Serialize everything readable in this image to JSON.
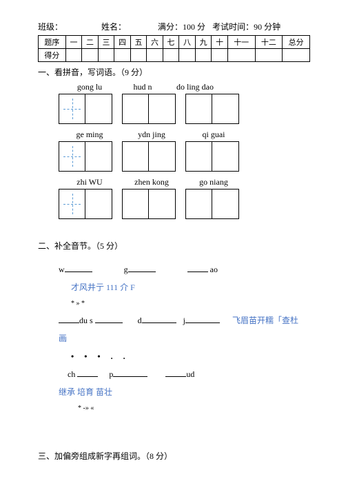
{
  "header": {
    "class_label": "班级：",
    "name_label": "姓名：",
    "full_score_label": "满分：",
    "full_score_value": "100 分",
    "time_label": "考试时间：",
    "time_value": "90 分钟"
  },
  "score_table": {
    "row1": [
      "题序",
      "一",
      "二",
      "三",
      "四",
      "五",
      "六",
      "七",
      "八",
      "九",
      "十",
      "十一",
      "十二",
      "总分"
    ],
    "row2_label": "得分"
  },
  "section1": {
    "title": "一、看拼音，写词语。（9 分）",
    "rows": [
      {
        "labels": [
          {
            "text": "gong  lu",
            "width": 90
          },
          {
            "text": "hud n",
            "width": 52,
            "offset": 6
          },
          {
            "text": "do ling dao",
            "width": 100
          }
        ],
        "groups": [
          {
            "boxes": 2,
            "dashed": [
              0
            ]
          },
          {
            "boxes": 2,
            "dashed": []
          },
          {
            "boxes": 2,
            "dashed": []
          }
        ]
      },
      {
        "labels": [
          {
            "text": "ge    ming",
            "width": 90
          },
          {
            "text": "ydn   jing",
            "width": 90
          },
          {
            "text": "qi    guai",
            "width": 90
          }
        ],
        "groups": [
          {
            "boxes": 2,
            "dashed": [
              0
            ]
          },
          {
            "boxes": 2,
            "dashed": []
          },
          {
            "boxes": 2,
            "dashed": []
          }
        ]
      },
      {
        "labels": [
          {
            "text": "zhi    WU",
            "width": 90
          },
          {
            "text": "zhen  kong",
            "width": 90
          },
          {
            "text": "go   niang",
            "width": 90
          }
        ],
        "groups": [
          {
            "boxes": 2,
            "dashed": [
              0
            ]
          },
          {
            "boxes": 2,
            "dashed": []
          },
          {
            "boxes": 2,
            "dashed": []
          }
        ]
      }
    ]
  },
  "section2": {
    "title": "二、补全音节。（5 分）",
    "line1_parts": [
      "w",
      "g",
      "ao"
    ],
    "blue_line1": "才风井亍 111 介 F",
    "symbol1": "* » *",
    "line2_parts": [
      "du s",
      "d",
      "j"
    ],
    "blue_line2_right": "飞眉苗开糯「查杜",
    "blue_line2_below": "画",
    "dots": "• • •   .  .",
    "line3_parts": [
      "ch",
      "p",
      "ud"
    ],
    "blue_line3": "继承  培育  苗壮",
    "symbol2": "* -» «"
  },
  "section3": {
    "title": "三、加偏旁组成新字再组词。（8 分）"
  },
  "colors": {
    "text": "#000000",
    "blue": "#4472c4",
    "dash": "#5b9bd5",
    "bg": "#ffffff"
  }
}
